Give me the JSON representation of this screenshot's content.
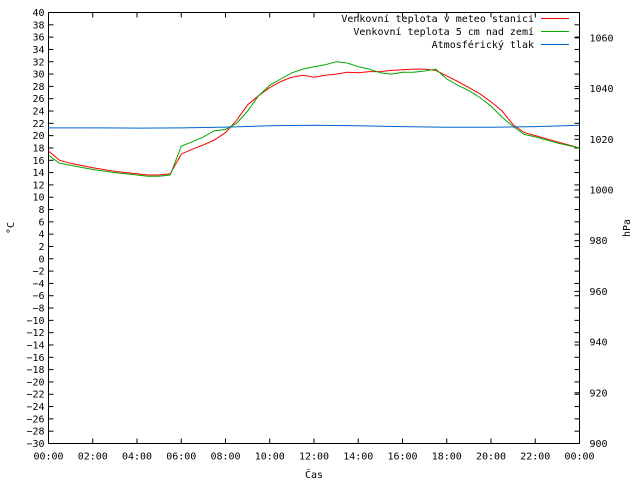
{
  "chart_data": {
    "type": "line",
    "title": "",
    "xlabel": "Čas",
    "ylabel": "°C",
    "y2label": "hPa",
    "x_ticks": [
      "00:00",
      "02:00",
      "04:00",
      "06:00",
      "08:00",
      "10:00",
      "12:00",
      "14:00",
      "16:00",
      "18:00",
      "20:00",
      "22:00",
      "00:00"
    ],
    "x_hours": [
      0,
      2,
      4,
      6,
      8,
      10,
      12,
      14,
      16,
      18,
      20,
      22,
      24
    ],
    "ylim": [
      -30,
      40
    ],
    "y_ticks": [
      40,
      38,
      36,
      34,
      32,
      30,
      28,
      26,
      24,
      22,
      20,
      18,
      16,
      14,
      12,
      10,
      8,
      6,
      4,
      2,
      0,
      -2,
      -4,
      -6,
      -8,
      -10,
      -12,
      -14,
      -16,
      -18,
      -20,
      -22,
      -24,
      -26,
      -28,
      -30
    ],
    "y_tick_labels": [
      "40",
      "38",
      "36",
      "34",
      "32",
      "30",
      "28",
      "26",
      "24",
      "22",
      "20",
      "18",
      "16",
      "14",
      "12",
      "10",
      "8",
      "6",
      "4",
      "2",
      "0",
      "−2",
      "−4",
      "−6",
      "−8",
      "−10",
      "−12",
      "−14",
      "−16",
      "−18",
      "−20",
      "−22",
      "−24",
      "−26",
      "−28",
      "−30"
    ],
    "y2lim": [
      900,
      1070
    ],
    "y2_ticks": [
      1060,
      1040,
      1020,
      1000,
      980,
      960,
      940,
      920,
      900
    ],
    "grid": false,
    "legend_position": "top-right",
    "series": [
      {
        "name": "Venkovní teplota v meteo stanici",
        "color": "#ff0000",
        "axis": "left",
        "x": [
          0,
          0.5,
          1,
          2,
          3,
          4,
          4.5,
          5,
          5.5,
          6,
          6.5,
          7,
          7.5,
          8,
          8.5,
          9,
          9.5,
          10,
          10.5,
          11,
          11.5,
          12,
          12.5,
          13,
          13.5,
          14,
          14.5,
          15,
          15.5,
          16,
          16.5,
          17,
          17.5,
          18,
          18.5,
          19,
          19.5,
          20,
          20.5,
          21,
          21.5,
          22,
          23,
          24
        ],
        "values": [
          17.5,
          16,
          15.5,
          14.8,
          14.2,
          13.8,
          13.6,
          13.6,
          13.8,
          17,
          17.8,
          18.5,
          19.3,
          20.5,
          22.5,
          25,
          26.5,
          27.8,
          28.8,
          29.5,
          29.8,
          29.5,
          29.8,
          30,
          30.3,
          30.2,
          30.4,
          30.4,
          30.6,
          30.7,
          30.8,
          30.8,
          30.6,
          29.7,
          28.8,
          27.8,
          26.8,
          25.5,
          24,
          21.8,
          20.5,
          20,
          19,
          18
        ]
      },
      {
        "name": "Venkovní teplota 5 cm nad zemí",
        "color": "#00aa00",
        "axis": "left",
        "x": [
          0,
          0.5,
          1,
          2,
          3,
          4,
          4.5,
          5,
          5.5,
          6,
          6.5,
          7,
          7.5,
          8,
          8.5,
          9,
          9.5,
          10,
          10.5,
          11,
          11.5,
          12,
          12.5,
          13,
          13.5,
          14,
          14.5,
          15,
          15.5,
          16,
          16.5,
          17,
          17.5,
          18,
          18.5,
          19,
          19.5,
          20,
          20.5,
          21,
          21.5,
          22,
          23,
          24
        ],
        "values": [
          16.8,
          15.5,
          15.2,
          14.5,
          14,
          13.6,
          13.4,
          13.4,
          13.6,
          18.3,
          19,
          19.8,
          20.8,
          21,
          22,
          24,
          26.5,
          28.2,
          29.2,
          30.2,
          30.8,
          31.2,
          31.5,
          32,
          31.8,
          31.2,
          30.8,
          30.2,
          30,
          30.3,
          30.3,
          30.5,
          30.8,
          29.2,
          28.2,
          27.3,
          26.2,
          24.8,
          23,
          21.5,
          20.2,
          19.8,
          18.8,
          18
        ]
      },
      {
        "name": "Atmosférický tlak",
        "color": "#0066cc",
        "axis": "right",
        "x": [
          0,
          2,
          4,
          6,
          8,
          10,
          12,
          14,
          16,
          18,
          20,
          22,
          24
        ],
        "values": [
          1024.5,
          1024.5,
          1024.4,
          1024.5,
          1024.8,
          1025.3,
          1025.5,
          1025.3,
          1025,
          1024.7,
          1024.7,
          1025,
          1025.5
        ]
      }
    ]
  }
}
